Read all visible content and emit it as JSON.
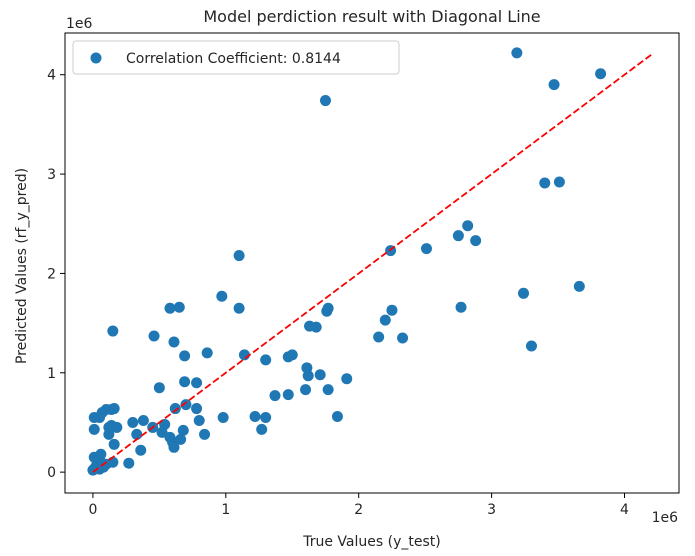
{
  "chart_data": {
    "type": "scatter",
    "title": "Model perdiction result with Diagonal Line",
    "xlabel": "True Values (y_test)",
    "ylabel": "Predicted Values (rf_y_pred)",
    "x_offset_label": "1e6",
    "y_offset_label": "1e6",
    "xlim": [
      -0.21,
      4.41
    ],
    "ylim": [
      -0.21,
      4.42
    ],
    "x_ticks": [
      0,
      1,
      2,
      3,
      4
    ],
    "x_tick_labels": [
      "0",
      "1",
      "2",
      "3",
      "4"
    ],
    "y_ticks": [
      0,
      1,
      2,
      3,
      4
    ],
    "y_tick_labels": [
      "0",
      "1",
      "2",
      "3",
      "4"
    ],
    "grid": false,
    "legend_position": "top-left",
    "series": [
      {
        "name": "Correlation Coefficient: 0.8144",
        "color": "#1f77b4",
        "points": [
          [
            0.0,
            0.02
          ],
          [
            0.01,
            0.03
          ],
          [
            0.02,
            0.05
          ],
          [
            0.03,
            0.08
          ],
          [
            0.05,
            0.03
          ],
          [
            0.06,
            0.1
          ],
          [
            0.08,
            0.05
          ],
          [
            0.1,
            0.08
          ],
          [
            0.15,
            0.1
          ],
          [
            0.27,
            0.09
          ],
          [
            0.01,
            0.15
          ],
          [
            0.06,
            0.18
          ],
          [
            0.01,
            0.43
          ],
          [
            0.01,
            0.55
          ],
          [
            0.05,
            0.55
          ],
          [
            0.07,
            0.6
          ],
          [
            0.1,
            0.63
          ],
          [
            0.14,
            0.63
          ],
          [
            0.16,
            0.64
          ],
          [
            0.12,
            0.45
          ],
          [
            0.14,
            0.47
          ],
          [
            0.18,
            0.45
          ],
          [
            0.12,
            0.38
          ],
          [
            0.16,
            0.28
          ],
          [
            0.15,
            1.42
          ],
          [
            0.3,
            0.5
          ],
          [
            0.33,
            0.38
          ],
          [
            0.36,
            0.22
          ],
          [
            0.38,
            0.52
          ],
          [
            0.45,
            0.45
          ],
          [
            0.46,
            1.37
          ],
          [
            0.5,
            0.85
          ],
          [
            0.52,
            0.4
          ],
          [
            0.54,
            0.48
          ],
          [
            0.58,
            1.65
          ],
          [
            0.58,
            0.35
          ],
          [
            0.6,
            0.3
          ],
          [
            0.61,
            0.25
          ],
          [
            0.61,
            1.31
          ],
          [
            0.62,
            0.64
          ],
          [
            0.65,
            1.66
          ],
          [
            0.66,
            0.33
          ],
          [
            0.68,
            0.42
          ],
          [
            0.69,
            1.17
          ],
          [
            0.69,
            0.91
          ],
          [
            0.7,
            0.68
          ],
          [
            0.78,
            0.9
          ],
          [
            0.78,
            0.64
          ],
          [
            0.8,
            0.52
          ],
          [
            0.84,
            0.38
          ],
          [
            0.86,
            1.2
          ],
          [
            0.97,
            1.77
          ],
          [
            0.98,
            0.55
          ],
          [
            1.1,
            2.18
          ],
          [
            1.1,
            1.65
          ],
          [
            1.14,
            1.18
          ],
          [
            1.22,
            0.56
          ],
          [
            1.27,
            0.43
          ],
          [
            1.3,
            0.55
          ],
          [
            1.3,
            1.13
          ],
          [
            1.37,
            0.77
          ],
          [
            1.47,
            0.78
          ],
          [
            1.47,
            1.16
          ],
          [
            1.5,
            1.18
          ],
          [
            1.6,
            0.83
          ],
          [
            1.61,
            1.05
          ],
          [
            1.62,
            0.97
          ],
          [
            1.63,
            1.47
          ],
          [
            1.68,
            1.46
          ],
          [
            1.71,
            0.98
          ],
          [
            1.75,
            3.74
          ],
          [
            1.76,
            1.62
          ],
          [
            1.77,
            1.65
          ],
          [
            1.77,
            0.83
          ],
          [
            1.84,
            0.56
          ],
          [
            1.91,
            0.94
          ],
          [
            2.15,
            1.36
          ],
          [
            2.2,
            1.53
          ],
          [
            2.24,
            2.23
          ],
          [
            2.25,
            1.63
          ],
          [
            2.33,
            1.35
          ],
          [
            2.51,
            2.25
          ],
          [
            2.75,
            2.38
          ],
          [
            2.77,
            1.66
          ],
          [
            2.82,
            2.48
          ],
          [
            2.88,
            2.33
          ],
          [
            3.19,
            4.22
          ],
          [
            3.24,
            1.8
          ],
          [
            3.3,
            1.27
          ],
          [
            3.4,
            2.91
          ],
          [
            3.47,
            3.9
          ],
          [
            3.51,
            2.92
          ],
          [
            3.66,
            1.87
          ],
          [
            3.82,
            4.01
          ]
        ]
      }
    ],
    "reference_line": {
      "type": "dashed",
      "color": "#ff0000",
      "from": [
        0.0,
        0.0
      ],
      "to": [
        4.2,
        4.2
      ]
    }
  }
}
